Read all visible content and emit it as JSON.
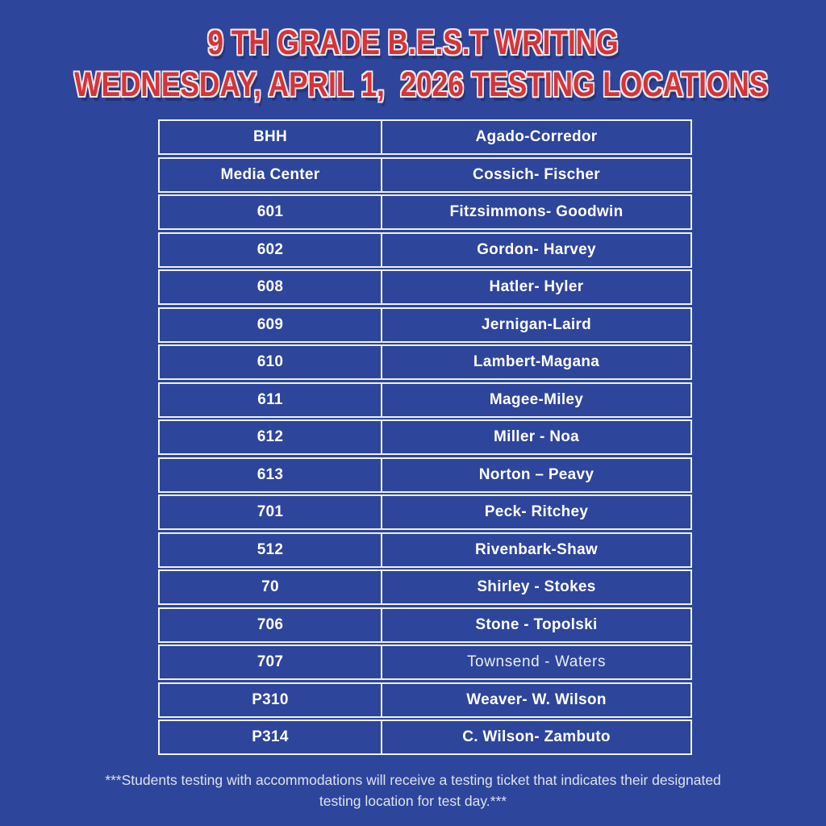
{
  "page": {
    "background_color": "#2e459c",
    "border_color": "#edf2ee",
    "title_color": "#d63339",
    "title_outline_color": "#f2eae9",
    "cell_text_color": "#ffffff",
    "footer_text_color": "#dde2ec"
  },
  "title": {
    "line1": "9 TH GRADE B.E.S.T WRITING",
    "line2": "WEDNESDAY, APRIL 1,  2026 TESTING LOCATIONS"
  },
  "table": {
    "columns": [
      "room",
      "names"
    ],
    "rows": [
      {
        "room": "BHH",
        "names": "Agado-Corredor"
      },
      {
        "room": "Media Center",
        "names": "Cossich- Fischer"
      },
      {
        "room": "601",
        "names": "Fitzsimmons- Goodwin"
      },
      {
        "room": "602",
        "names": "Gordon- Harvey"
      },
      {
        "room": "608",
        "names": "Hatler- Hyler"
      },
      {
        "room": "609",
        "names": "Jernigan-Laird"
      },
      {
        "room": "610",
        "names": "Lambert-Magana"
      },
      {
        "room": "611",
        "names": "Magee-Miley"
      },
      {
        "room": "612",
        "names": "Miller - Noa"
      },
      {
        "room": "613",
        "names": "Norton – Peavy"
      },
      {
        "room": "701",
        "names": "Peck- Ritchey"
      },
      {
        "room": "512",
        "names": "Rivenbark-Shaw"
      },
      {
        "room": "70",
        "names": "Shirley - Stokes"
      },
      {
        "room": "706",
        "names": "Stone - Topolski"
      },
      {
        "room": "707",
        "names": "Townsend - Waters",
        "emphasis": "regular"
      },
      {
        "room": "P310",
        "names": "Weaver- W. Wilson"
      },
      {
        "room": "P314",
        "names": "C. Wilson- Zambuto"
      }
    ]
  },
  "footer": {
    "note": "***Students testing with accommodations will receive a testing ticket that indicates their designated testing location for test day.***"
  }
}
